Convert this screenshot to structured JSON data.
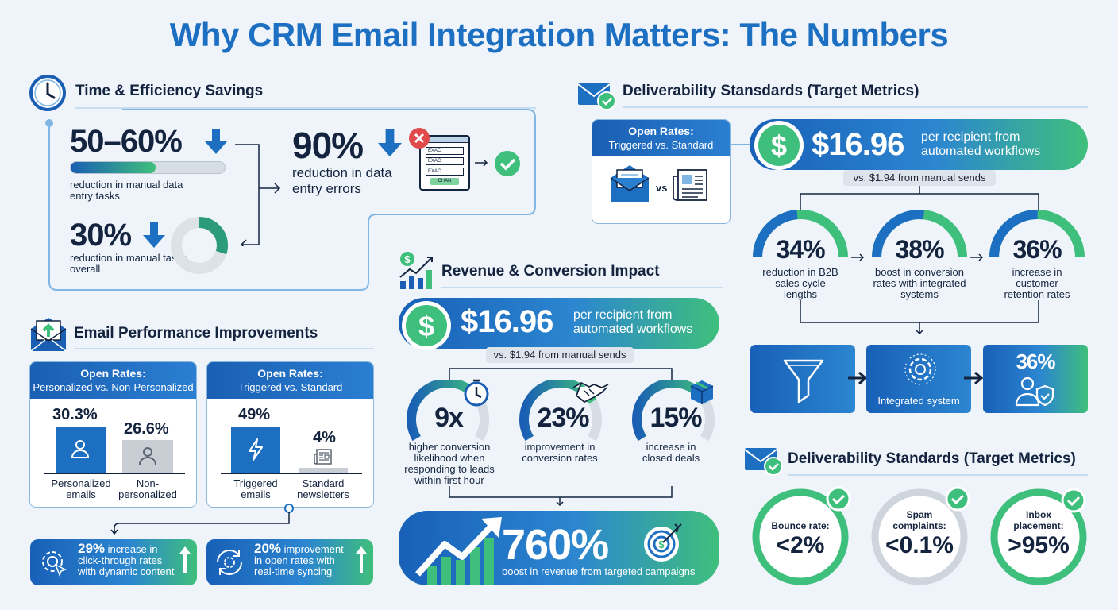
{
  "title": "Why CRM Email Integration Matters: The Numbers",
  "time": {
    "heading": "Time & Efficiency Savings",
    "stat1": {
      "value": "50–60%",
      "label": "reduction in manual data entry tasks",
      "bar_fraction": 0.55
    },
    "stat2": {
      "value": "30%",
      "label": "reduction in manual tasks overall",
      "ring_fraction": 0.3
    },
    "stat3": {
      "value": "90%",
      "label": "reduction in data entry errors"
    },
    "form_rows": [
      "EXAC",
      "EXAC",
      "EXAC",
      "CHAN"
    ]
  },
  "email_perf": {
    "heading": "Email Performance Improvements",
    "card1": {
      "title": "Open Rates:",
      "subtitle": "Personalized vs. Non-Personalized",
      "a": {
        "value": "30.3%",
        "label1": "Personalized",
        "label2": "emails"
      },
      "b": {
        "value": "26.6%",
        "label1": "Non-",
        "label2": "personalized"
      }
    },
    "card2": {
      "title": "Open Rates:",
      "subtitle": "Triggered vs. Standard",
      "a": {
        "value": "49%",
        "label1": "Triggered",
        "label2": "emails"
      },
      "b": {
        "value": "4%",
        "label1": "Standard",
        "label2": "newsletters"
      }
    },
    "band1": {
      "value": "29%",
      "rest": " increase in",
      "line2": "click-through rates",
      "line3": "with dynamic content"
    },
    "band2": {
      "value": "20%",
      "rest": " improvement",
      "line2": "in open rates with",
      "line3": "real-time syncing"
    }
  },
  "revenue": {
    "heading": "Revenue & Conversion Impact",
    "pill": {
      "value": "$16.96",
      "line1": "per recipient from",
      "line2": "automated workflows"
    },
    "vs": "vs. $1.94 from manual sends",
    "gauges": [
      {
        "value": "9x",
        "label": "higher conversion likelihood when responding to leads within first hour",
        "fraction": 0.75
      },
      {
        "value": "23%",
        "label": "improvement in conversion rates",
        "fraction": 0.75
      },
      {
        "value": "15%",
        "label": "increase in closed deals",
        "fraction": 0.75
      }
    ],
    "band": {
      "value": "760%",
      "label": "boost in revenue from targeted campaigns"
    }
  },
  "deliv_top": {
    "heading": "Deliverability Stansdards (Target Metrics)",
    "card": {
      "title": "Open Rates:",
      "subtitle": "Triggered vs. Standard",
      "vs": "vs"
    },
    "pill": {
      "value": "$16.96",
      "line1": "per recipient from",
      "line2": "automated workflows"
    },
    "vs": "vs. $1.94 from manual sends",
    "gauges": [
      {
        "value": "34%",
        "label": "reduction in B2B sales cycle lengths",
        "fraction": 0.34
      },
      {
        "value": "38%",
        "label": "boost in conversion rates with integrated systems",
        "fraction": 0.38
      },
      {
        "value": "36%",
        "label": "increase in customer retention rates",
        "fraction": 0.36
      }
    ],
    "flow": {
      "middle": "Integrated system",
      "right": "36%"
    }
  },
  "deliv_bottom": {
    "heading": "Deliverability Standards (Target Metrics)",
    "metrics": [
      {
        "label1": "Bounce rate:",
        "label2": "",
        "value": "<2%"
      },
      {
        "label1": "Spam",
        "label2": "complaints:",
        "value": "<0.1%"
      },
      {
        "label1": "Inbox",
        "label2": "placement:",
        "value": ">95%"
      }
    ]
  },
  "colors": {
    "blue": "#1d6fc2",
    "green": "#3fbf7c",
    "navy": "#14243f"
  }
}
